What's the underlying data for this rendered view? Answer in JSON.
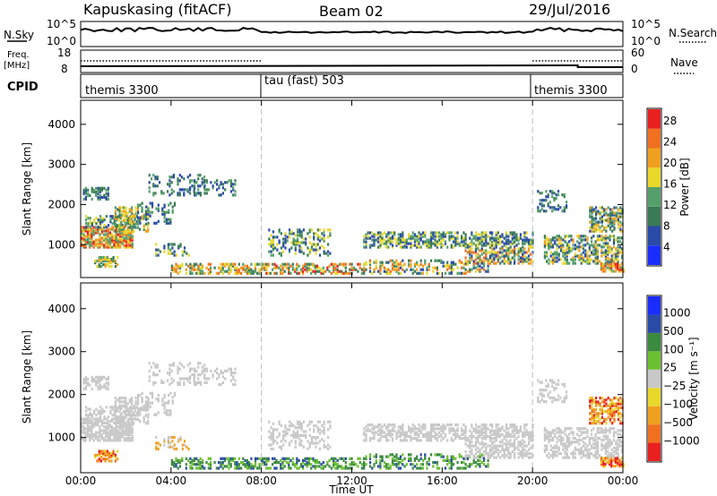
{
  "header": {
    "radar": "Kapuskasing (fitACF)",
    "beam": "Beam 02",
    "date": "29/Jul/2016"
  },
  "summary_panels": {
    "nsky": {
      "label": "N.Sky",
      "ticks": [
        "10^5",
        "10^0"
      ]
    },
    "nsearch": {
      "label": "N.Search",
      "ticks": [
        "10^5",
        "10^0"
      ]
    },
    "freq": {
      "label_top": "Freq.",
      "label_unit": "[MHz]",
      "ticks": [
        "18",
        "8"
      ]
    },
    "nave": {
      "label": "Nave",
      "ticks": [
        "60",
        "0"
      ]
    },
    "cpid": {
      "label": "CPID",
      "segments": [
        "themis 3300",
        "tau (fast) 503",
        "themis 3300"
      ]
    }
  },
  "colors": {
    "power": [
      "#1a2dff",
      "#2a4aa8",
      "#3a7a55",
      "#55a06a",
      "#e8d82a",
      "#f0a020",
      "#f07020",
      "#e82020"
    ],
    "velocity": [
      "#e82020",
      "#f07020",
      "#f0a020",
      "#e8d82a",
      "#c8c8c8",
      "#6ac030",
      "#3a8a40",
      "#2a4aa8",
      "#1a2dff"
    ],
    "ground_scatter": "#c8c8c8"
  },
  "chart_data": [
    {
      "type": "heatmap",
      "name": "power",
      "ylabel": "Slant Range [km]",
      "yticks": [
        "1000",
        "2000",
        "3000",
        "4000"
      ],
      "ylim": [
        180,
        4600
      ],
      "colorbar_label": "Power [dB]",
      "colorbar_ticks": [
        "4",
        "8",
        "12",
        "16",
        "20",
        "24",
        "28"
      ],
      "x": [
        "00:00",
        "04:00",
        "08:00",
        "12:00",
        "16:00",
        "20:00",
        "00:00"
      ],
      "xlim_hours": [
        0,
        24
      ],
      "cpid_change_hours": [
        8,
        20
      ]
    },
    {
      "type": "heatmap",
      "name": "velocity",
      "ylabel": "Slant Range [km]",
      "yticks": [
        "1000",
        "2000",
        "3000",
        "4000"
      ],
      "ylim": [
        180,
        4600
      ],
      "colorbar_label": "Velocity [m s⁻¹]",
      "colorbar_ticks": [
        "1000",
        "500",
        "100",
        "25",
        "−25",
        "−100",
        "−500",
        "−1000"
      ],
      "x": [
        "00:00",
        "04:00",
        "08:00",
        "12:00",
        "16:00",
        "20:00",
        "00:00"
      ],
      "xlabel": "Time UT",
      "xlim_hours": [
        0,
        24
      ],
      "cpid_change_hours": [
        8,
        20
      ]
    }
  ]
}
